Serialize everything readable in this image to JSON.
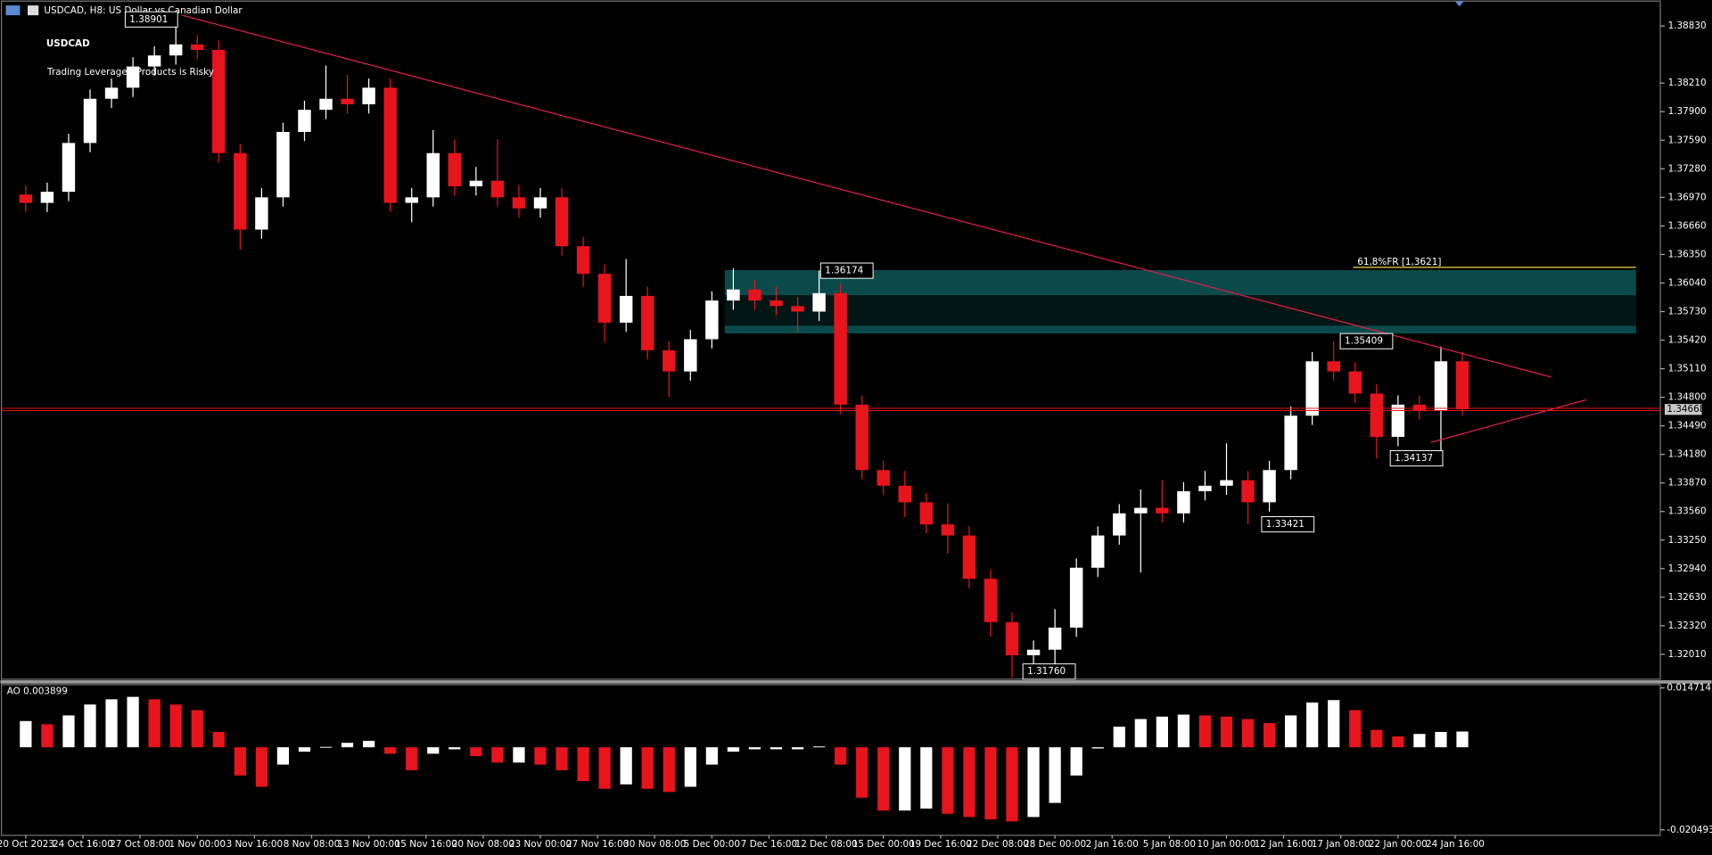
{
  "chart_data": [
    {
      "type": "candlestick",
      "header": "USDCAD, H8: US Dollar vs Canadian Dollar",
      "title": "USDCAD",
      "subtitle": "Trading Leveraged Products is Risky",
      "x": [
        0,
        3,
        6,
        9,
        12,
        15,
        18,
        21,
        24,
        27,
        30,
        33,
        36,
        39,
        42,
        45,
        48,
        51,
        54,
        57,
        60,
        63,
        66,
        69,
        72,
        75,
        78,
        81,
        84,
        87,
        90,
        93,
        96,
        99,
        102,
        105,
        108,
        111,
        114,
        117,
        120,
        123,
        126,
        129,
        132,
        135,
        138,
        141,
        144,
        147,
        150,
        153,
        156,
        159,
        162,
        165,
        168,
        171,
        174,
        177,
        180,
        183,
        186,
        189,
        192,
        195,
        198,
        201
      ],
      "open": [
        1.37,
        1.3691,
        1.3703,
        1.3756,
        1.3804,
        1.3816,
        1.3839,
        1.3851,
        1.3863,
        1.3857,
        1.3745,
        1.3662,
        1.3697,
        1.3768,
        1.3792,
        1.3804,
        1.3798,
        1.3816,
        1.3691,
        1.3697,
        1.3745,
        1.3709,
        1.3715,
        1.3697,
        1.3685,
        1.3697,
        1.3644,
        1.3614,
        1.3561,
        1.359,
        1.3531,
        1.3508,
        1.3543,
        1.3585,
        1.3597,
        1.3585,
        1.3579,
        1.3573,
        1.3593,
        1.3472,
        1.3401,
        1.3384,
        1.3366,
        1.3342,
        1.333,
        1.3283,
        1.3236,
        1.32,
        1.3206,
        1.323,
        1.3295,
        1.333,
        1.3354,
        1.336,
        1.3354,
        1.3378,
        1.3384,
        1.339,
        1.3366,
        1.3401,
        1.346,
        1.3519,
        1.3508,
        1.3484,
        1.3437,
        1.3472,
        1.3466,
        1.3519
      ],
      "high": [
        1.371,
        1.3713,
        1.3766,
        1.3814,
        1.3826,
        1.3849,
        1.3861,
        1.389,
        1.3873,
        1.3867,
        1.3755,
        1.3707,
        1.3778,
        1.3802,
        1.384,
        1.383,
        1.3826,
        1.3826,
        1.3707,
        1.377,
        1.376,
        1.373,
        1.376,
        1.371,
        1.3707,
        1.3707,
        1.3654,
        1.3624,
        1.363,
        1.36,
        1.3541,
        1.3553,
        1.3595,
        1.362,
        1.3607,
        1.36,
        1.3589,
        1.36174,
        1.3603,
        1.3482,
        1.3411,
        1.34,
        1.3376,
        1.3365,
        1.334,
        1.3293,
        1.3246,
        1.3216,
        1.325,
        1.3305,
        1.334,
        1.3364,
        1.338,
        1.339,
        1.3388,
        1.34,
        1.343,
        1.34,
        1.3411,
        1.347,
        1.3529,
        1.35409,
        1.3518,
        1.3494,
        1.3482,
        1.3482,
        1.3535,
        1.3529
      ],
      "low": [
        1.3681,
        1.3681,
        1.3693,
        1.3746,
        1.3794,
        1.3806,
        1.3829,
        1.3841,
        1.3847,
        1.3735,
        1.364,
        1.3652,
        1.3687,
        1.3758,
        1.3782,
        1.3788,
        1.3788,
        1.3681,
        1.367,
        1.3687,
        1.3699,
        1.3699,
        1.3687,
        1.3675,
        1.3675,
        1.3634,
        1.36,
        1.354,
        1.3551,
        1.3521,
        1.348,
        1.3498,
        1.3533,
        1.3575,
        1.3575,
        1.3569,
        1.355,
        1.3563,
        1.3462,
        1.3391,
        1.3374,
        1.335,
        1.3332,
        1.331,
        1.3273,
        1.322,
        1.3176,
        1.319,
        1.318,
        1.322,
        1.3285,
        1.332,
        1.329,
        1.3344,
        1.3344,
        1.3368,
        1.3374,
        1.33421,
        1.3356,
        1.3391,
        1.345,
        1.3498,
        1.3474,
        1.34137,
        1.3427,
        1.3456,
        1.342,
        1.346
      ],
      "close": [
        1.3691,
        1.3703,
        1.3756,
        1.3804,
        1.3816,
        1.3839,
        1.3851,
        1.3863,
        1.3857,
        1.3745,
        1.3662,
        1.3697,
        1.3768,
        1.3792,
        1.3804,
        1.3798,
        1.3816,
        1.3691,
        1.3697,
        1.3745,
        1.3709,
        1.3715,
        1.3697,
        1.3685,
        1.3697,
        1.3644,
        1.3614,
        1.3561,
        1.359,
        1.3531,
        1.3508,
        1.3543,
        1.3585,
        1.3597,
        1.3585,
        1.3579,
        1.3573,
        1.3593,
        1.3472,
        1.3401,
        1.3384,
        1.3366,
        1.3342,
        1.333,
        1.3283,
        1.3236,
        1.32,
        1.3206,
        1.323,
        1.3295,
        1.333,
        1.3354,
        1.336,
        1.3354,
        1.3378,
        1.3384,
        1.339,
        1.3366,
        1.3401,
        1.346,
        1.3519,
        1.3508,
        1.3484,
        1.3437,
        1.3472,
        1.3466,
        1.3519,
        1.3467
      ],
      "up_color": "#ffffff",
      "down_color": "#e8141c",
      "xlim": [
        -3.4,
        228.7
      ],
      "ylim": [
        1.3174,
        1.391
      ],
      "yticks": [
        {
          "value": 1.3883,
          "label": "1.38830"
        },
        {
          "value": 1.3821,
          "label": "1.38210"
        },
        {
          "value": 1.379,
          "label": "1.37900"
        },
        {
          "value": 1.3759,
          "label": "1.37590"
        },
        {
          "value": 1.3728,
          "label": "1.37280"
        },
        {
          "value": 1.3697,
          "label": "1.36970"
        },
        {
          "value": 1.3666,
          "label": "1.36660"
        },
        {
          "value": 1.3635,
          "label": "1.36350"
        },
        {
          "value": 1.3604,
          "label": "1.36040"
        },
        {
          "value": 1.3573,
          "label": "1.35730"
        },
        {
          "value": 1.3542,
          "label": "1.35420"
        },
        {
          "value": 1.3511,
          "label": "1.35110"
        },
        {
          "value": 1.348,
          "label": "1.34800"
        },
        {
          "value": 1.3449,
          "label": "1.34490"
        },
        {
          "value": 1.3418,
          "label": "1.34180"
        },
        {
          "value": 1.3387,
          "label": "1.33870"
        },
        {
          "value": 1.3356,
          "label": "1.33560"
        },
        {
          "value": 1.3325,
          "label": "1.33250"
        },
        {
          "value": 1.3294,
          "label": "1.32940"
        },
        {
          "value": 1.3263,
          "label": "1.32630"
        },
        {
          "value": 1.3232,
          "label": "1.32320"
        },
        {
          "value": 1.3201,
          "label": "1.32010"
        }
      ],
      "current_price": {
        "value": 1.34668,
        "color": "#e8141c"
      },
      "zones": [
        {
          "x": [
            97.8,
            225.3
          ],
          "top": 1.3618,
          "bottom": 1.35493,
          "color": "#0b4a4a"
        },
        {
          "x": [
            97.8,
            225.3
          ],
          "top": 1.35908,
          "bottom": 1.35577,
          "color": "#031515"
        }
      ],
      "fib": {
        "label": "61,8%FR [1,3621]",
        "value": 1.3621,
        "x": [
          185.7,
          225.3
        ],
        "color": "#e8d84a"
      },
      "trendlines": [
        {
          "points": [
            [
              21.8,
              1.38948
            ],
            [
              213.4,
              1.3502
            ]
          ]
        },
        {
          "points": [
            [
              196.6,
              1.3431
            ],
            [
              218.3,
              1.34772
            ]
          ]
        }
      ],
      "trend_color": "#e0204a",
      "price_labels": [
        {
          "x": 13,
          "value": 1.38901
        },
        {
          "x": 110.3,
          "value": 1.36174
        },
        {
          "x": 183,
          "value": 1.35409
        },
        {
          "x": 190,
          "value": 1.34137
        },
        {
          "x": 172,
          "value": 1.33421
        },
        {
          "x": 138.6,
          "value": 1.3176,
          "label": "1.31760"
        }
      ]
    },
    {
      "type": "bar",
      "title": "AO 0.003899",
      "x": [
        0,
        3,
        6,
        9,
        12,
        15,
        18,
        21,
        24,
        27,
        30,
        33,
        36,
        39,
        42,
        45,
        48,
        51,
        54,
        57,
        60,
        63,
        66,
        69,
        72,
        75,
        78,
        81,
        84,
        87,
        90,
        93,
        96,
        99,
        102,
        105,
        108,
        111,
        114,
        117,
        120,
        123,
        126,
        129,
        132,
        135,
        138,
        141,
        144,
        147,
        150,
        153,
        156,
        159,
        162,
        165,
        168,
        171,
        174,
        177,
        180,
        183,
        186,
        189,
        192,
        195,
        198,
        201
      ],
      "values": [
        0.0065,
        0.0057,
        0.0079,
        0.0106,
        0.0119,
        0.0125,
        0.0119,
        0.0106,
        0.0092,
        0.0038,
        -0.007,
        -0.0098,
        -0.0043,
        -0.0011,
        0.0001,
        0.0011,
        0.0016,
        -0.0016,
        -0.0057,
        -0.0016,
        -0.0005,
        -0.0022,
        -0.0038,
        -0.0038,
        -0.0043,
        -0.0057,
        -0.0084,
        -0.0103,
        -0.0092,
        -0.0103,
        -0.0111,
        -0.0098,
        -0.0043,
        -0.0011,
        -0.0005,
        -0.0005,
        -0.0005,
        0.0002,
        -0.0043,
        -0.0125,
        -0.0157,
        -0.0157,
        -0.0152,
        -0.0165,
        -0.0173,
        -0.0179,
        -0.0184,
        -0.0173,
        -0.0138,
        -0.007,
        -0.0003,
        0.0051,
        0.007,
        0.0076,
        0.0081,
        0.0079,
        0.0076,
        0.007,
        0.006,
        0.0079,
        0.0111,
        0.0117,
        0.0092,
        0.0043,
        0.0027,
        0.0033,
        0.0038,
        0.003899
      ],
      "up_color": "#ffffff",
      "down_color": "#e8141c",
      "xlim": [
        -3.4,
        228.7
      ],
      "ylim": [
        -0.02185,
        0.01553
      ],
      "yticks": [
        0.014714,
        -0.020493
      ],
      "xticks": [
        {
          "value": 0,
          "label": "20 Oct 2023"
        },
        {
          "value": 8,
          "label": "24 Oct 16:00"
        },
        {
          "value": 16,
          "label": "27 Oct 08:00"
        },
        {
          "value": 24,
          "label": "1 Nov 00:00"
        },
        {
          "value": 32,
          "label": "3 Nov 16:00"
        },
        {
          "value": 40,
          "label": "8 Nov 08:00"
        },
        {
          "value": 48,
          "label": "13 Nov 00:00"
        },
        {
          "value": 56,
          "label": "15 Nov 16:00"
        },
        {
          "value": 64,
          "label": "20 Nov 08:00"
        },
        {
          "value": 72,
          "label": "23 Nov 00:00"
        },
        {
          "value": 80,
          "label": "27 Nov 16:00"
        },
        {
          "value": 88,
          "label": "30 Nov 08:00"
        },
        {
          "value": 96,
          "label": "5 Dec 00:00"
        },
        {
          "value": 104,
          "label": "7 Dec 16:00"
        },
        {
          "value": 112,
          "label": "12 Dec 08:00"
        },
        {
          "value": 120,
          "label": "15 Dec 00:00"
        },
        {
          "value": 128,
          "label": "19 Dec 16:00"
        },
        {
          "value": 136,
          "label": "22 Dec 08:00"
        },
        {
          "value": 144,
          "label": "28 Dec 00:00"
        },
        {
          "value": 152,
          "label": "2 Jan 16:00"
        },
        {
          "value": 160,
          "label": "5 Jan 08:00"
        },
        {
          "value": 168,
          "label": "10 Jan 00:00"
        },
        {
          "value": 176,
          "label": "12 Jan 16:00"
        },
        {
          "value": 184,
          "label": "17 Jan 08:00"
        },
        {
          "value": 192,
          "label": "22 Jan 00:00"
        },
        {
          "value": 200,
          "label": "24 Jan 16:00"
        }
      ]
    }
  ]
}
